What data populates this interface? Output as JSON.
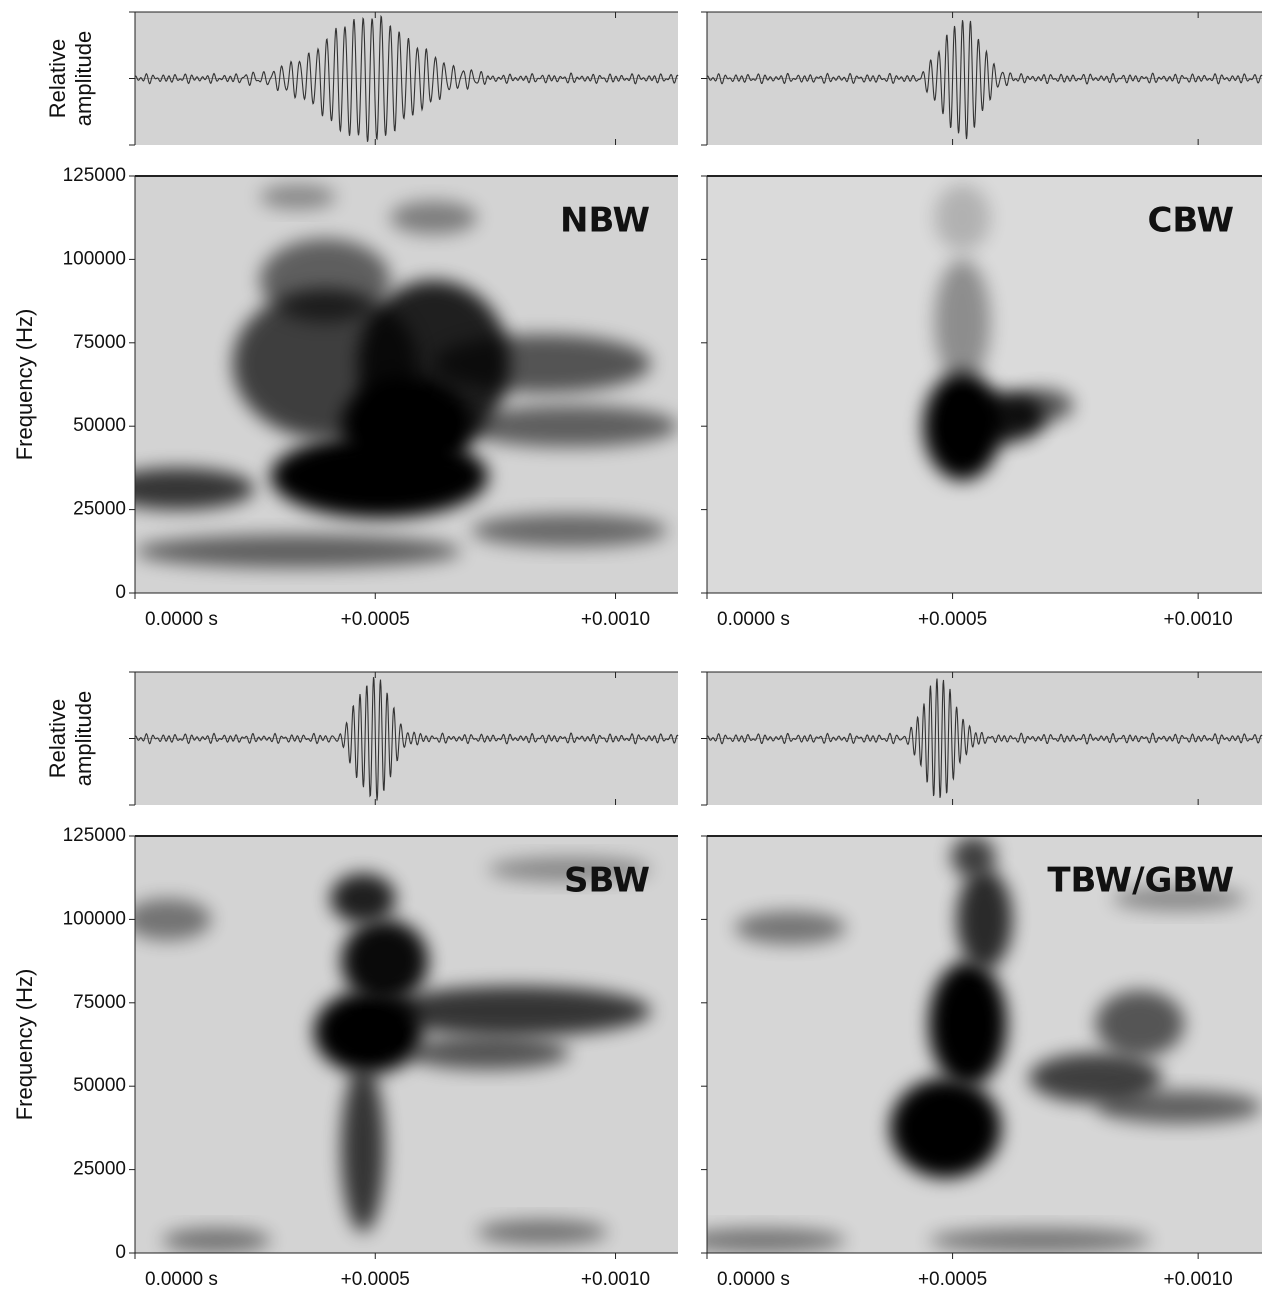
{
  "chart_data": [
    {
      "type": "spectrogram",
      "label": "NBW",
      "ylabel": "Frequency (Hz)",
      "amplitude_label": [
        "Relative",
        "amplitude"
      ],
      "show_ytick_labels": true,
      "xlim": [
        0,
        0.00113
      ],
      "xticks": [
        {
          "value": 0,
          "label": "0.0000 s"
        },
        {
          "value": 0.0005,
          "label": "+0.0005"
        },
        {
          "value": 0.001,
          "label": "+0.0010"
        }
      ],
      "ylim": [
        0,
        125000
      ],
      "yticks": [
        0,
        25000,
        50000,
        75000,
        100000,
        125000
      ]
    },
    {
      "type": "spectrogram",
      "label": "CBW",
      "show_ytick_labels": false,
      "xlim": [
        0,
        0.00113
      ],
      "xticks": [
        {
          "value": 0,
          "label": "0.0000 s"
        },
        {
          "value": 0.0005,
          "label": "+0.0005"
        },
        {
          "value": 0.001,
          "label": "+0.0010"
        }
      ],
      "ylim": [
        0,
        125000
      ],
      "yticks": [
        0,
        25000,
        50000,
        75000,
        100000,
        125000
      ]
    },
    {
      "type": "spectrogram",
      "label": "SBW",
      "ylabel": "Frequency (Hz)",
      "amplitude_label": [
        "Relative",
        "amplitude"
      ],
      "show_ytick_labels": true,
      "xlim": [
        0,
        0.00113
      ],
      "xticks": [
        {
          "value": 0,
          "label": "0.0000 s"
        },
        {
          "value": 0.0005,
          "label": "+0.0005"
        },
        {
          "value": 0.001,
          "label": "+0.0010"
        }
      ],
      "ylim": [
        0,
        125000
      ],
      "yticks": [
        0,
        25000,
        50000,
        75000,
        100000,
        125000
      ]
    },
    {
      "type": "spectrogram",
      "label": "TBW/GBW",
      "show_ytick_labels": false,
      "xlim": [
        0,
        0.00113
      ],
      "xticks": [
        {
          "value": 0,
          "label": "0.0000 s"
        },
        {
          "value": 0.0005,
          "label": "+0.0005"
        },
        {
          "value": 0.001,
          "label": "+0.0010"
        }
      ],
      "ylim": [
        0,
        125000
      ],
      "yticks": [
        0,
        25000,
        50000,
        75000,
        100000,
        125000
      ]
    }
  ]
}
